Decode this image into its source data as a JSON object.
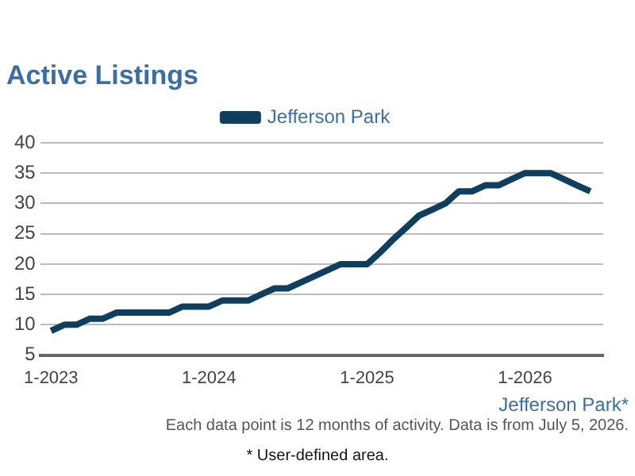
{
  "chart_data": {
    "type": "line",
    "title": "Active Listings",
    "x": [
      "2023-01",
      "2023-02",
      "2023-03",
      "2023-04",
      "2023-05",
      "2023-06",
      "2023-07",
      "2023-08",
      "2023-09",
      "2023-10",
      "2023-11",
      "2023-12",
      "2024-01",
      "2024-02",
      "2024-03",
      "2024-04",
      "2024-05",
      "2024-06",
      "2024-07",
      "2024-08",
      "2024-09",
      "2024-10",
      "2024-11",
      "2024-12",
      "2025-01",
      "2025-02",
      "2025-03",
      "2025-04",
      "2025-05",
      "2025-06",
      "2025-07",
      "2025-08",
      "2025-09",
      "2025-10",
      "2025-11",
      "2025-12",
      "2026-01",
      "2026-02",
      "2026-03",
      "2026-04",
      "2026-05",
      "2026-06"
    ],
    "series": [
      {
        "name": "Jefferson Park",
        "color": "#0e3f5f",
        "values": [
          9,
          10,
          10,
          11,
          11,
          12,
          12,
          12,
          12,
          12,
          13,
          13,
          13,
          14,
          14,
          14,
          15,
          16,
          16,
          17,
          18,
          19,
          20,
          20,
          20,
          22,
          24,
          26,
          28,
          29,
          30,
          32,
          32,
          33,
          33,
          34,
          35,
          35,
          35,
          34,
          33,
          32
        ]
      }
    ],
    "xlim": [
      "2022-12-07",
      "2026-07-01"
    ],
    "xticks": [
      {
        "value": "2023-01",
        "label": "1-2023"
      },
      {
        "value": "2024-01",
        "label": "1-2024"
      },
      {
        "value": "2025-01",
        "label": "1-2025"
      },
      {
        "value": "2026-01",
        "label": "1-2026"
      }
    ],
    "ylim": [
      5,
      40
    ],
    "yticks": [
      5,
      10,
      15,
      20,
      25,
      30,
      35,
      40
    ],
    "grid": "y",
    "legend": "top",
    "marker": "none",
    "line_style": "solid",
    "annotations": [
      "Jefferson Park*",
      "Each data point is 12 months of activity. Data is from July 5, 2026.",
      "* User-defined area."
    ]
  }
}
